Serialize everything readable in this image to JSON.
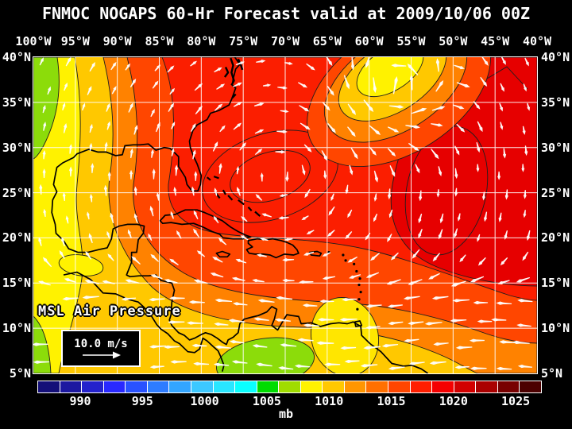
{
  "header": {
    "title": "FNMOC NOGAPS 60-Hr Forecast valid at 2009/10/06 00Z"
  },
  "map": {
    "overlay_label": "MSL Air Pressure",
    "wind_legend": {
      "speed_label": "10.0 m/s",
      "arrow_icon": "right-arrow"
    },
    "axes": {
      "top": [
        "100°W",
        "95°W",
        "90°W",
        "85°W",
        "80°W",
        "75°W",
        "70°W",
        "65°W",
        "60°W",
        "55°W",
        "50°W",
        "45°W",
        "40°W"
      ],
      "left": [
        "40°N",
        "35°N",
        "30°N",
        "25°N",
        "20°N",
        "15°N",
        "10°N",
        "5°N"
      ],
      "right": [
        "40°N",
        "35°N",
        "30°N",
        "25°N",
        "20°N",
        "15°N",
        "10°N",
        "5°N"
      ]
    },
    "palette": {
      "green": "#8CDC0A",
      "yellow": "#FFF200",
      "light_yellow": "#FFE600",
      "gold": "#FFC800",
      "orange": "#FF8200",
      "orange_red": "#FF4600",
      "red": "#FB1E00",
      "dark_red": "#E60000",
      "contour": "#1E1E1E",
      "coast": "#000000",
      "grid": "#FFFFFF",
      "wind": "#FFFFFF"
    }
  },
  "colorbar": {
    "unit": "mb",
    "ticks": [
      "990",
      "995",
      "1000",
      "1005",
      "1010",
      "1015",
      "1020",
      "1025"
    ],
    "segments": [
      "#140F78",
      "#1C18A0",
      "#2422CC",
      "#2929FF",
      "#2952FF",
      "#2E7CFF",
      "#33A5FF",
      "#3CC8FF",
      "#29E6FF",
      "#0AFFFF",
      "#00DC00",
      "#A0DC00",
      "#FFF200",
      "#FFC800",
      "#FF9600",
      "#FF7000",
      "#FF4600",
      "#FF1E00",
      "#F50000",
      "#D20000",
      "#AA0000",
      "#780000",
      "#4B0000"
    ]
  },
  "chart_data": {
    "type": "heatmap",
    "subtype": "filled-contour-weather-map",
    "title": "FNMOC NOGAPS 60-Hr Forecast valid at 2009/10/06 00Z",
    "variable": "MSL Air Pressure",
    "units": "mb",
    "colorbar_ticks": [
      990,
      995,
      1000,
      1005,
      1010,
      1015,
      1020,
      1025
    ],
    "lon_labels_deg_west": [
      100,
      95,
      90,
      85,
      80,
      75,
      70,
      65,
      60,
      55,
      50,
      45,
      40
    ],
    "lat_labels_deg_north": [
      40,
      35,
      30,
      25,
      20,
      15,
      10,
      5
    ],
    "grid_step_deg": 5,
    "wind_reference": "10.0 m/s",
    "field_summary": "Broad ~1015-1017 mb high (red) over Florida and the western Atlantic; darker red >1015 mb east of ~65W; pressure falls westward/southward through orange ~1012 mb and gold ~1010 mb to yellow/green ~1005 mb along 100W and over northern South America; yellow ~1005 mb trough near 52W at 40N; white trade-wind arrows point westward south of 20N"
  }
}
